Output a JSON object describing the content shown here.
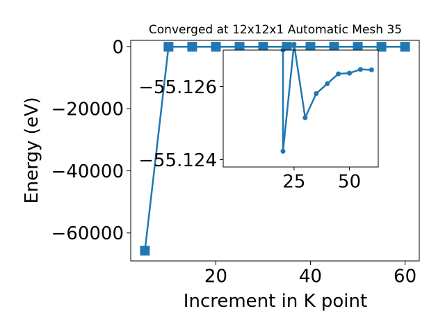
{
  "chart_data": [
    {
      "type": "line",
      "title": "Converged at 12x12x1 Automatic Mesh 35",
      "xlabel": "Increment in K point",
      "ylabel": "Energy (eV)",
      "xlim": [
        2,
        63
      ],
      "ylim": [
        -69000,
        2000
      ],
      "xticks": [
        "20",
        "40",
        "60"
      ],
      "yticks": [
        "0",
        "−20000",
        "−40000",
        "−60000"
      ],
      "series": [
        {
          "color": "#1f77b4",
          "marker": "square",
          "x": [
            5,
            10,
            15,
            20,
            25,
            30,
            35,
            40,
            45,
            50,
            55,
            60
          ],
          "y": [
            -65700,
            -55.1,
            -55.1,
            -55.1,
            -55.1,
            -55.1,
            -55.1,
            -55.1,
            -55.1,
            -55.1,
            -55.1,
            -55.1
          ]
        }
      ],
      "grid": false
    },
    {
      "type": "line",
      "role": "inset",
      "xlim": [
        -7,
        63
      ],
      "ylim": [
        -55.1238,
        -55.127
      ],
      "xticks": [
        "25",
        "50"
      ],
      "yticks": [
        "−55.126",
        "−55.124"
      ],
      "series": [
        {
          "color": "#1f77b4",
          "marker": "circle",
          "x": [
            20,
            20,
            25,
            30,
            35,
            40,
            45,
            50,
            55,
            60
          ],
          "y": [
            -55.127,
            -55.12423,
            -55.12716,
            -55.12515,
            -55.12581,
            -55.12608,
            -55.12635,
            -55.12637,
            -55.12647,
            -55.12646
          ]
        }
      ],
      "grid": false
    }
  ]
}
